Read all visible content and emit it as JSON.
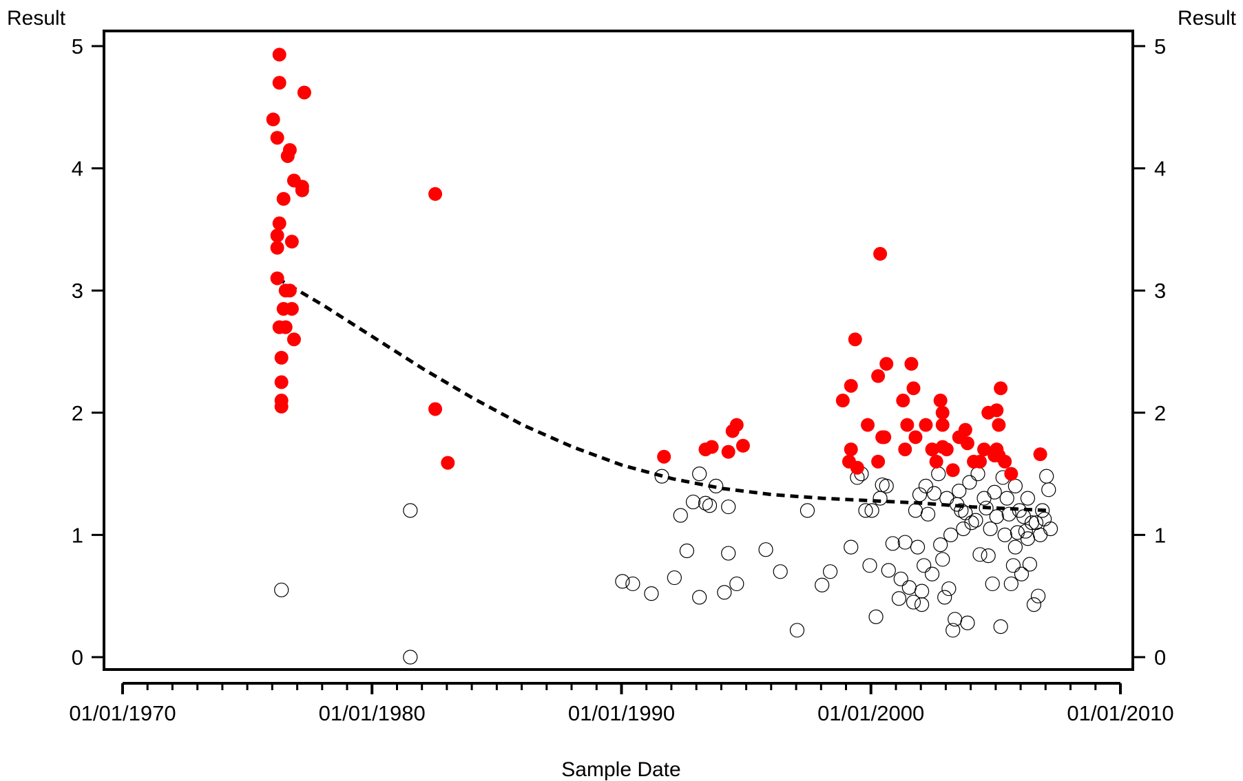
{
  "chart_data": {
    "type": "scatter",
    "xlabel": "Sample Date",
    "ylabel_left": "Result",
    "ylabel_right": "Result",
    "x_ticks": [
      "01/01/1970",
      "01/01/1980",
      "01/01/1990",
      "01/01/2000",
      "01/01/2010"
    ],
    "x_range": [
      "01/01/1970",
      "01/01/2010"
    ],
    "y_ticks": [
      0,
      1,
      2,
      3,
      4,
      5
    ],
    "ylim": [
      0,
      5
    ],
    "grid": false,
    "colors": {
      "highlighted": "#ff0000",
      "normal_stroke": "#000000",
      "trend": "#000000"
    },
    "series": [
      {
        "style": "filled-red-circle",
        "points": [
          [
            "1976-01",
            4.4
          ],
          [
            "1976-04",
            4.93
          ],
          [
            "1976-04",
            4.7
          ],
          [
            "1977-04",
            4.62
          ],
          [
            "1976-03",
            4.25
          ],
          [
            "1976-09",
            4.15
          ],
          [
            "1976-08",
            4.1
          ],
          [
            "1976-11",
            3.9
          ],
          [
            "1977-03",
            3.85
          ],
          [
            "1977-03",
            3.82
          ],
          [
            "1976-06",
            3.75
          ],
          [
            "1976-04",
            3.55
          ],
          [
            "1976-03",
            3.45
          ],
          [
            "1976-03",
            3.35
          ],
          [
            "1976-10",
            3.4
          ],
          [
            "1976-03",
            3.1
          ],
          [
            "1976-07",
            3.0
          ],
          [
            "1976-09",
            3.0
          ],
          [
            "1976-06",
            2.85
          ],
          [
            "1976-10",
            2.85
          ],
          [
            "1976-04",
            2.7
          ],
          [
            "1976-07",
            2.7
          ],
          [
            "1976-11",
            2.6
          ],
          [
            "1976-05",
            2.45
          ],
          [
            "1976-05",
            2.25
          ],
          [
            "1976-05",
            2.1
          ],
          [
            "1976-05",
            2.05
          ],
          [
            "1982-07",
            3.79
          ],
          [
            "1982-07",
            2.03
          ],
          [
            "1983-01",
            1.59
          ],
          [
            "1991-09",
            1.64
          ],
          [
            "1993-05",
            1.7
          ],
          [
            "1993-08",
            1.72
          ],
          [
            "1994-04",
            1.68
          ],
          [
            "1994-06",
            1.85
          ],
          [
            "1994-08",
            1.9
          ],
          [
            "1994-11",
            1.73
          ],
          [
            "1998-11",
            2.1
          ],
          [
            "1999-03",
            2.22
          ],
          [
            "1999-03",
            1.7
          ],
          [
            "1999-02",
            1.6
          ],
          [
            "1999-06",
            1.55
          ],
          [
            "1999-11",
            1.9
          ],
          [
            "1999-05",
            2.6
          ],
          [
            "2000-05",
            3.3
          ],
          [
            "2000-04",
            2.3
          ],
          [
            "2000-08",
            2.4
          ],
          [
            "2000-07",
            1.8
          ],
          [
            "2000-06",
            1.8
          ],
          [
            "2000-04",
            1.6
          ],
          [
            "2001-04",
            2.1
          ],
          [
            "2001-06",
            1.9
          ],
          [
            "2001-08",
            2.4
          ],
          [
            "2001-09",
            2.2
          ],
          [
            "2001-10",
            1.8
          ],
          [
            "2001-05",
            1.7
          ],
          [
            "2002-03",
            1.9
          ],
          [
            "2002-06",
            1.7
          ],
          [
            "2002-08",
            1.6
          ],
          [
            "2002-10",
            2.1
          ],
          [
            "2002-11",
            2.0
          ],
          [
            "2002-11",
            1.9
          ],
          [
            "2003-01",
            1.7
          ],
          [
            "2002-11",
            1.72
          ],
          [
            "2003-04",
            1.53
          ],
          [
            "2003-07",
            1.8
          ],
          [
            "2003-10",
            1.86
          ],
          [
            "2003-11",
            1.75
          ],
          [
            "2004-02",
            1.6
          ],
          [
            "2004-05",
            1.6
          ],
          [
            "2004-07",
            1.7
          ],
          [
            "2004-09",
            2.0
          ],
          [
            "2004-12",
            1.65
          ],
          [
            "2005-01",
            1.7
          ],
          [
            "2005-02",
            1.9
          ],
          [
            "2005-01",
            2.02
          ],
          [
            "2005-03",
            2.2
          ],
          [
            "2005-02",
            1.65
          ],
          [
            "2005-05",
            1.6
          ],
          [
            "2005-08",
            1.5
          ],
          [
            "2006-10",
            1.66
          ]
        ]
      },
      {
        "style": "open-black-circle",
        "points": [
          [
            "1976-05",
            0.55
          ],
          [
            "1981-07",
            1.2
          ],
          [
            "1981-07",
            0.0
          ],
          [
            "1990-01",
            0.62
          ],
          [
            "1990-06",
            0.6
          ],
          [
            "1991-03",
            0.52
          ],
          [
            "1991-08",
            1.48
          ],
          [
            "1992-02",
            0.65
          ],
          [
            "1992-05",
            1.16
          ],
          [
            "1992-08",
            0.87
          ],
          [
            "1992-11",
            1.27
          ],
          [
            "1993-02",
            0.49
          ],
          [
            "1993-02",
            1.5
          ],
          [
            "1993-05",
            1.26
          ],
          [
            "1993-07",
            1.24
          ],
          [
            "1993-10",
            1.4
          ],
          [
            "1994-02",
            0.53
          ],
          [
            "1994-04",
            1.23
          ],
          [
            "1994-04",
            0.85
          ],
          [
            "1994-08",
            0.6
          ],
          [
            "1995-10",
            0.88
          ],
          [
            "1996-05",
            0.7
          ],
          [
            "1997-01",
            0.22
          ],
          [
            "1997-06",
            1.2
          ],
          [
            "1998-01",
            0.59
          ],
          [
            "1998-05",
            0.7
          ],
          [
            "1999-03",
            0.9
          ],
          [
            "1999-06",
            1.47
          ],
          [
            "1999-08",
            1.5
          ],
          [
            "1999-10",
            1.2
          ],
          [
            "2000-01",
            1.2
          ],
          [
            "1999-12",
            0.75
          ],
          [
            "2000-03",
            0.33
          ],
          [
            "2000-05",
            1.3
          ],
          [
            "2000-06",
            1.41
          ],
          [
            "2000-09",
            0.71
          ],
          [
            "2000-11",
            0.93
          ],
          [
            "2001-02",
            0.48
          ],
          [
            "2001-03",
            0.64
          ],
          [
            "2001-05",
            0.94
          ],
          [
            "2001-07",
            0.57
          ],
          [
            "2001-09",
            0.45
          ],
          [
            "2001-10",
            1.2
          ],
          [
            "2001-11",
            0.9
          ],
          [
            "2002-01",
            0.54
          ],
          [
            "2002-01",
            0.43
          ],
          [
            "2002-02",
            0.75
          ],
          [
            "2002-04",
            1.17
          ],
          [
            "2002-06",
            0.68
          ],
          [
            "2002-07",
            1.34
          ],
          [
            "2002-10",
            0.92
          ],
          [
            "2002-11",
            0.8
          ],
          [
            "2002-12",
            0.49
          ],
          [
            "2003-01",
            1.3
          ],
          [
            "2003-02",
            0.56
          ],
          [
            "2003-03",
            1.0
          ],
          [
            "2003-04",
            0.22
          ],
          [
            "2003-05",
            0.31
          ],
          [
            "2003-07",
            1.36
          ],
          [
            "2003-09",
            1.05
          ],
          [
            "2003-10",
            1.18
          ],
          [
            "2003-11",
            0.28
          ],
          [
            "2004-01",
            1.1
          ],
          [
            "2004-03",
            1.12
          ],
          [
            "2004-05",
            0.84
          ],
          [
            "2004-07",
            1.3
          ],
          [
            "2004-09",
            0.83
          ],
          [
            "2004-10",
            1.05
          ],
          [
            "2004-11",
            0.6
          ],
          [
            "2005-01",
            1.15
          ],
          [
            "2005-03",
            0.25
          ],
          [
            "2005-05",
            1.0
          ],
          [
            "2005-07",
            1.17
          ],
          [
            "2005-08",
            0.6
          ],
          [
            "2005-09",
            0.75
          ],
          [
            "2005-10",
            0.9
          ],
          [
            "2005-11",
            1.02
          ],
          [
            "2006-01",
            0.68
          ],
          [
            "2006-03",
            1.03
          ],
          [
            "2006-04",
            1.3
          ],
          [
            "2006-05",
            0.76
          ],
          [
            "2006-07",
            0.43
          ],
          [
            "2006-08",
            1.1
          ],
          [
            "2006-09",
            0.5
          ],
          [
            "2006-10",
            1.0
          ],
          [
            "2006-11",
            1.2
          ],
          [
            "2007-01",
            1.48
          ],
          [
            "2007-02",
            1.37
          ],
          [
            "2007-03",
            1.05
          ],
          [
            "2002-03",
            1.4
          ],
          [
            "2002-09",
            1.5
          ],
          [
            "2003-06",
            1.25
          ],
          [
            "2003-12",
            1.43
          ],
          [
            "2004-04",
            1.5
          ],
          [
            "2004-08",
            1.22
          ],
          [
            "2005-04",
            1.47
          ],
          [
            "2005-06",
            1.3
          ],
          [
            "2005-12",
            1.2
          ],
          [
            "2006-02",
            1.15
          ],
          [
            "2006-06",
            1.1
          ],
          [
            "2006-12",
            1.13
          ],
          [
            "2001-12",
            1.33
          ],
          [
            "2000-08",
            1.4
          ],
          [
            "2003-08",
            1.2
          ],
          [
            "2004-12",
            1.35
          ],
          [
            "2005-10",
            1.4
          ],
          [
            "2006-04",
            0.97
          ]
        ]
      }
    ],
    "trend_line": {
      "style": "dashed",
      "points": [
        [
          "1976-03",
          3.1
        ],
        [
          "1978-01",
          2.88
        ],
        [
          "1980-01",
          2.62
        ],
        [
          "1982-01",
          2.36
        ],
        [
          "1984-01",
          2.12
        ],
        [
          "1986-01",
          1.9
        ],
        [
          "1988-01",
          1.72
        ],
        [
          "1990-01",
          1.57
        ],
        [
          "1992-01",
          1.46
        ],
        [
          "1994-01",
          1.38
        ],
        [
          "1996-01",
          1.33
        ],
        [
          "1998-01",
          1.3
        ],
        [
          "2000-01",
          1.28
        ],
        [
          "2002-01",
          1.26
        ],
        [
          "2004-01",
          1.23
        ],
        [
          "2006-01",
          1.21
        ],
        [
          "2007-03",
          1.2
        ]
      ]
    }
  }
}
